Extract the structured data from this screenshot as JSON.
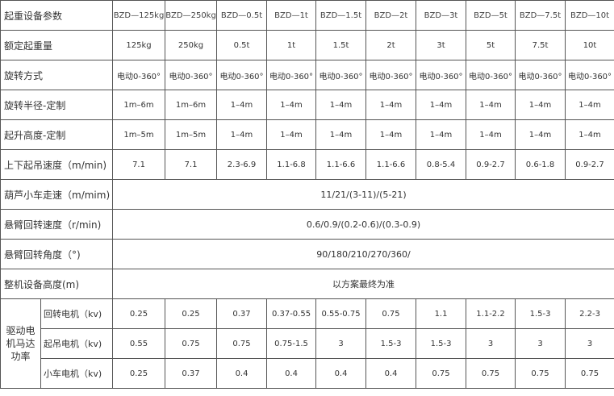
{
  "table": {
    "header": [
      "起重设备参数",
      "BZD—125kg",
      "BZD—250kg",
      "BZD—0.5t",
      "BZD—1t",
      "BZD—1.5t",
      "BZD—2t",
      "BZD—3t",
      "BZD—5t",
      "BZD—7.5t",
      "BZD—10t"
    ],
    "rows": [
      [
        "额定起重量",
        "125kg",
        "250kg",
        "0.5t",
        "1t",
        "1.5t",
        "2t",
        "3t",
        "5t",
        "7.5t",
        "10t"
      ],
      [
        "旋转方式",
        "电动0-360°",
        "电动0-360°",
        "电动0-360°",
        "电动0-360°",
        "电动0-360°",
        "电动0-360°",
        "电动0-360°",
        "电动0-360°",
        "电动0-360°",
        "电动0-360°"
      ],
      [
        "旋转半径-定制",
        "1m–6m",
        "1m–6m",
        "1–4m",
        "1–4m",
        "1–4m",
        "1–4m",
        "1–4m",
        "1–4m",
        "1–4m",
        "1–4m"
      ],
      [
        "起升高度-定制",
        "1m–5m",
        "1m–5m",
        "1–4m",
        "1–4m",
        "1–4m",
        "1–4m",
        "1–4m",
        "1–4m",
        "1–4m",
        "1–4m"
      ],
      [
        "上下起吊速度（m/min)",
        "7.1",
        "7.1",
        "2.3-6.9",
        "1.1-6.8",
        "1.1-6.6",
        "1.1-6.6",
        "0.8-5.4",
        "0.9-2.7",
        "0.6-1.8",
        "0.9-2.7"
      ]
    ],
    "merged_rows": [
      [
        "葫芦小车走速（m/mim)",
        "11/21/(3-11)/(5-21)"
      ],
      [
        "悬臂回转速度（r/min)",
        "0.6/0.9/(0.2-0.6)/(0.3-0.9)"
      ],
      [
        "悬臂回转角度（°)",
        "90/180/210/270/360/"
      ],
      [
        "整机设备高度(m)",
        "以方案最终为准"
      ]
    ],
    "motor": {
      "label": "驱动电机马达功率",
      "rows": [
        [
          "回转电机（kv)",
          "0.25",
          "0.25",
          "0.37",
          "0.37-0.55",
          "0.55-0.75",
          "0.75",
          "1.1",
          "1.1-2.2",
          "1.5-3",
          "2.2-3"
        ],
        [
          "起吊电机（kv)",
          "0.55",
          "0.75",
          "0.75",
          "0.75-1.5",
          "3",
          "1.5-3",
          "1.5-3",
          "3",
          "3",
          "3"
        ],
        [
          "小车电机（kv)",
          "0.25",
          "0.37",
          "0.4",
          "0.4",
          "0.4",
          "0.4",
          "0.75",
          "0.75",
          "0.75",
          "0.75"
        ]
      ]
    }
  }
}
